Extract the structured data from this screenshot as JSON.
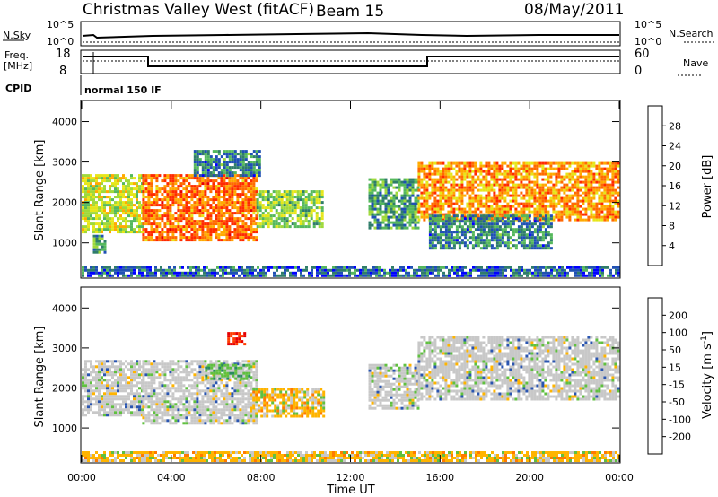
{
  "header": {
    "title": "Christmas Valley West (fitACF)",
    "beam": "Beam 15",
    "date": "08/May/2011"
  },
  "top_panels": {
    "nsky_label": "N.Sky",
    "nsky_ticks": [
      "10^5",
      "10^0"
    ],
    "nsearch_label": "N.Search",
    "nsearch_ticks": [
      "10^5",
      "10^0"
    ],
    "freq_label_1": "Freq.",
    "freq_label_2": "[MHz]",
    "freq_ticks": [
      "18",
      "8"
    ],
    "nave_label": "Nave",
    "nave_ticks": [
      "60",
      "0"
    ],
    "cpid_label": "CPID",
    "cpid_text": "normal 150 IF"
  },
  "chart_data": [
    {
      "type": "heatmap",
      "name": "power",
      "ylabel": "Slant Range [km]",
      "xlabel": "",
      "yticks": [
        "1000",
        "2000",
        "3000",
        "4000"
      ],
      "ylim": [
        150,
        4500
      ],
      "xlim": [
        0,
        24
      ],
      "colorbar_label": "Power [dB]",
      "colorbar_ticks": [
        "28",
        "24",
        "20",
        "16",
        "12",
        "8",
        "4"
      ],
      "colorbar_colors": [
        "#0000ff",
        "#1f50b4",
        "#2f7d6a",
        "#55b85c",
        "#9fd93a",
        "#e6e619",
        "#ffaa00",
        "#ff6a00",
        "#ff2a00",
        "#e60000"
      ],
      "echo_regions": [
        {
          "t_start": 0.0,
          "t_end": 2.7,
          "range_min": 1300,
          "range_max": 2700,
          "level_db": 16
        },
        {
          "t_start": 0.5,
          "t_end": 1.0,
          "range_min": 800,
          "range_max": 1200,
          "level_db": 10
        },
        {
          "t_start": 2.7,
          "t_end": 7.8,
          "range_min": 1100,
          "range_max": 2700,
          "level_db": 24
        },
        {
          "t_start": 5.0,
          "t_end": 8.0,
          "range_min": 2700,
          "range_max": 3300,
          "level_db": 8
        },
        {
          "t_start": 7.8,
          "t_end": 10.8,
          "range_min": 1400,
          "range_max": 2300,
          "level_db": 14
        },
        {
          "t_start": 12.8,
          "t_end": 15.0,
          "range_min": 1400,
          "range_max": 2600,
          "level_db": 10
        },
        {
          "t_start": 15.0,
          "t_end": 24.0,
          "range_min": 1600,
          "range_max": 3000,
          "level_db": 22
        },
        {
          "t_start": 15.5,
          "t_end": 21.0,
          "range_min": 900,
          "range_max": 1700,
          "level_db": 8
        },
        {
          "t_start": 0.0,
          "t_end": 24.0,
          "range_min": 180,
          "range_max": 420,
          "level_db": 6
        }
      ]
    },
    {
      "type": "heatmap",
      "name": "velocity",
      "ylabel": "Slant Range [km]",
      "xlabel": "Time UT",
      "xticks": [
        "00:00",
        "04:00",
        "08:00",
        "12:00",
        "16:00",
        "20:00",
        "00:00"
      ],
      "yticks": [
        "1000",
        "2000",
        "3000",
        "4000"
      ],
      "ylim": [
        150,
        4500
      ],
      "xlim": [
        0,
        24
      ],
      "colorbar_label": "Velocity [m s",
      "colorbar_label_sup": "-1",
      "colorbar_label_end": "]",
      "colorbar_ticks": [
        "200",
        "100",
        "50",
        "15",
        "-15",
        "-50",
        "-100",
        "-200"
      ],
      "colorbar_colors": [
        "#1a2a9a",
        "#2a55b0",
        "#2a8a60",
        "#60c040",
        "#c8c8c8",
        "#ffb400",
        "#ff7a00",
        "#ff3c00",
        "#e60000"
      ],
      "echo_regions": [
        {
          "t_start": 0.0,
          "t_end": 2.7,
          "range_min": 1300,
          "range_max": 2700,
          "v_class": "gs"
        },
        {
          "t_start": 2.7,
          "t_end": 7.8,
          "range_min": 1100,
          "range_max": 2700,
          "v_class": "gs"
        },
        {
          "t_start": 5.5,
          "t_end": 7.5,
          "range_min": 2200,
          "range_max": 2600,
          "v_class": "pos"
        },
        {
          "t_start": 7.5,
          "t_end": 10.8,
          "range_min": 1300,
          "range_max": 2000,
          "v_class": "neg"
        },
        {
          "t_start": 12.8,
          "t_end": 15.0,
          "range_min": 1500,
          "range_max": 2600,
          "v_class": "gs"
        },
        {
          "t_start": 15.0,
          "t_end": 24.0,
          "range_min": 1700,
          "range_max": 3300,
          "v_class": "gs"
        },
        {
          "t_start": 6.5,
          "t_end": 7.3,
          "range_min": 3100,
          "range_max": 3400,
          "v_class": "strong_neg"
        },
        {
          "t_start": 0.0,
          "t_end": 24.0,
          "range_min": 180,
          "range_max": 420,
          "v_class": "neg"
        }
      ]
    }
  ]
}
